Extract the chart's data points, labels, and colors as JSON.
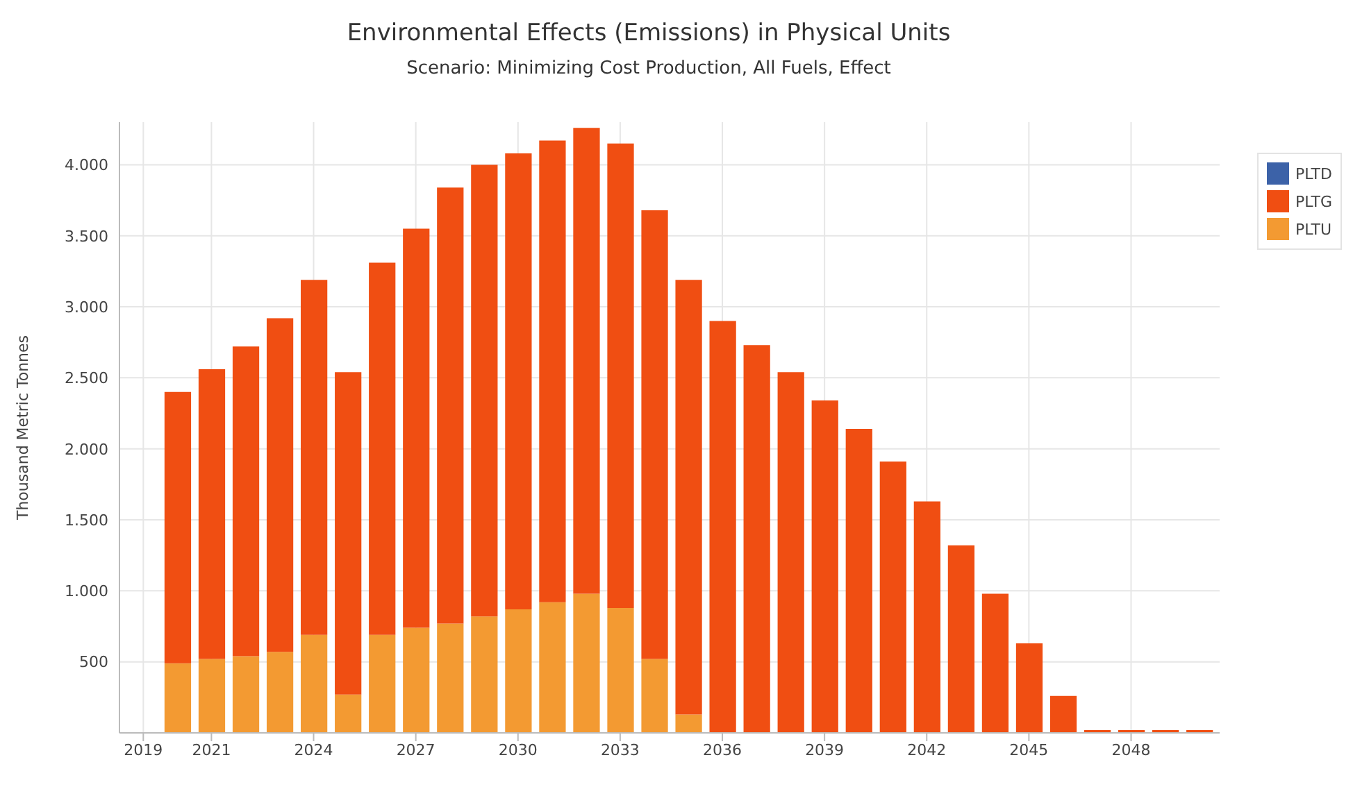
{
  "chart_data": {
    "type": "bar",
    "title": "Environmental Effects (Emissions) in Physical Units",
    "subtitle": "Scenario: Minimizing Cost Production, All Fuels, Effect",
    "ylabel": "Thousand Metric Tonnes",
    "stacked": true,
    "x": [
      2020,
      2021,
      2022,
      2023,
      2024,
      2025,
      2026,
      2027,
      2028,
      2029,
      2030,
      2031,
      2032,
      2033,
      2034,
      2035,
      2036,
      2037,
      2038,
      2039,
      2040,
      2041,
      2042,
      2043,
      2044,
      2045,
      2046,
      2047,
      2048,
      2049,
      2050
    ],
    "series": [
      {
        "name": "PLTU",
        "color": "#f39a32",
        "values": [
          490,
          520,
          540,
          570,
          690,
          270,
          690,
          740,
          770,
          820,
          870,
          920,
          980,
          880,
          520,
          130,
          null,
          null,
          null,
          null,
          null,
          null,
          null,
          null,
          null,
          null,
          null,
          null,
          null,
          null,
          null
        ]
      },
      {
        "name": "PLTG",
        "color": "#f04e12",
        "values": [
          1910,
          2040,
          2180,
          2350,
          2500,
          2270,
          2620,
          2810,
          3070,
          3180,
          3210,
          3250,
          3280,
          3270,
          3160,
          3060,
          2900,
          2730,
          2540,
          2340,
          2140,
          1910,
          1630,
          1320,
          980,
          630,
          260,
          20,
          20,
          20,
          20
        ]
      },
      {
        "name": "PLTD",
        "color": "#3c62a8",
        "values": [
          null,
          null,
          null,
          null,
          null,
          null,
          null,
          null,
          null,
          null,
          null,
          null,
          null,
          null,
          null,
          null,
          null,
          null,
          null,
          null,
          null,
          null,
          null,
          null,
          null,
          null,
          null,
          null,
          null,
          null,
          null
        ]
      }
    ],
    "xlim": [
      2018.3,
      2050.6
    ],
    "xticks": [
      2019,
      2021,
      2024,
      2027,
      2030,
      2033,
      2036,
      2039,
      2042,
      2045,
      2048
    ],
    "ylim": [
      0,
      4300
    ],
    "yticks": [
      500,
      {
        "value": 1000,
        "label": "1.000"
      },
      {
        "value": 1500,
        "label": "1.500"
      },
      {
        "value": 2000,
        "label": "2.000"
      },
      {
        "value": 2500,
        "label": "2.500"
      },
      {
        "value": 3000,
        "label": "3.000"
      },
      {
        "value": 3500,
        "label": "3.500"
      },
      {
        "value": 4000,
        "label": "4.000"
      }
    ],
    "grid": true,
    "legend": "top right"
  }
}
